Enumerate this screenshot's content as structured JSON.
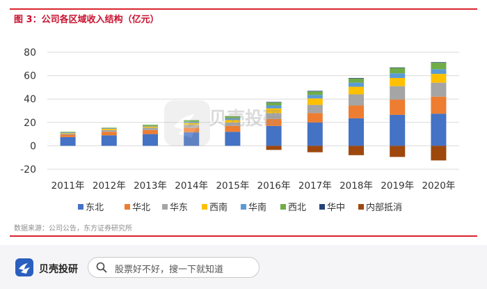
{
  "header": {
    "title": "图 3：公司各区域收入结构（亿元）"
  },
  "footer": {
    "source": "数据来源：公司公告，东方证券研究所",
    "brand": "贝壳投研",
    "search_placeholder": "股票好不好，搜一下就知道"
  },
  "watermark": {
    "text": "贝壳投研"
  },
  "colors": {
    "accent": "#c8102e"
  },
  "chart_data": {
    "type": "bar",
    "stacked": true,
    "title": "图 3：公司各区域收入结构（亿元）",
    "xlabel": "",
    "ylabel": "",
    "ylim": [
      -20,
      80
    ],
    "yticks": [
      80,
      60,
      40,
      20,
      0,
      -20
    ],
    "grid": true,
    "legend_position": "bottom",
    "categories": [
      "2011年",
      "2012年",
      "2013年",
      "2014年",
      "2015年",
      "2016年",
      "2017年",
      "2018年",
      "2019年",
      "2020年"
    ],
    "series": [
      {
        "name": "东北",
        "color": "#4472c4",
        "values": [
          7.5,
          9,
          10,
          11.5,
          12,
          17,
          20,
          23.5,
          26.5,
          27.5
        ]
      },
      {
        "name": "华北",
        "color": "#ed7d31",
        "values": [
          2,
          3,
          3.5,
          4,
          5,
          6,
          8,
          11,
          13,
          14.5
        ]
      },
      {
        "name": "华东",
        "color": "#a5a5a5",
        "values": [
          1,
          1.5,
          2,
          2.5,
          3,
          5,
          7,
          9.5,
          11.5,
          12
        ]
      },
      {
        "name": "西南",
        "color": "#ffc000",
        "values": [
          0.5,
          1,
          1,
          1.5,
          2,
          4,
          5.5,
          6.5,
          7,
          7.5
        ]
      },
      {
        "name": "华南",
        "color": "#5b9bd5",
        "values": [
          0.5,
          0.5,
          0.5,
          1,
          1.5,
          2.5,
          3,
          3.5,
          4,
          4
        ]
      },
      {
        "name": "西北",
        "color": "#70ad47",
        "values": [
          0.5,
          0.5,
          1,
          1.5,
          2,
          2.5,
          3,
          3.5,
          4.5,
          5.5
        ]
      },
      {
        "name": "华中",
        "color": "#264478",
        "values": [
          0,
          0,
          0,
          0,
          0,
          0.5,
          0.5,
          0.5,
          0.5,
          0.5
        ]
      },
      {
        "name": "内部抵消",
        "color": "#9e480e",
        "values": [
          0,
          0,
          0,
          0,
          0,
          -3.5,
          -5.5,
          -8,
          -9.5,
          -12.5
        ]
      }
    ]
  }
}
